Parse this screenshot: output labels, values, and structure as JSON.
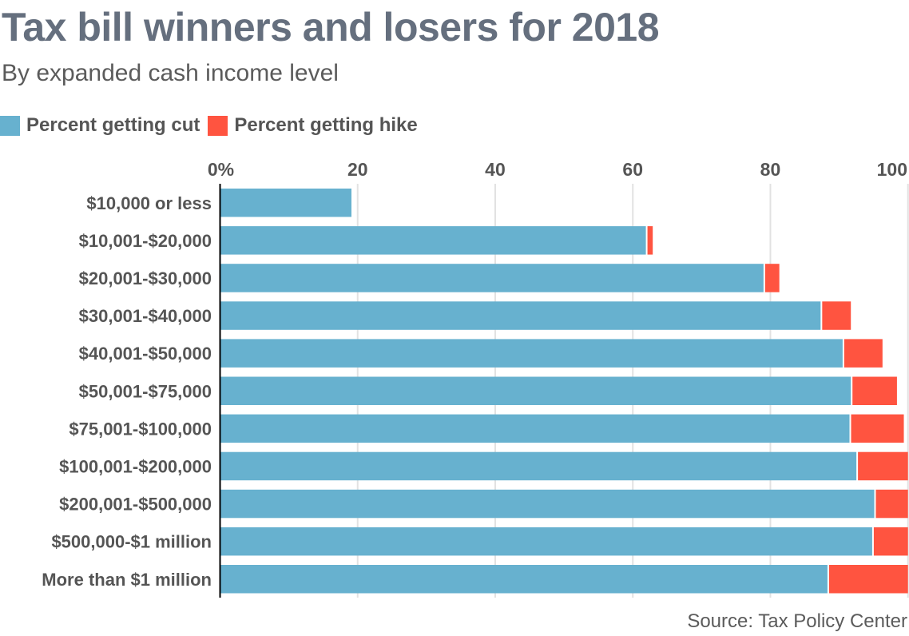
{
  "chart_data": {
    "type": "bar",
    "orientation": "horizontal",
    "stacked": true,
    "title": "Tax bill winners and losers for 2018",
    "subtitle": "By expanded cash income level",
    "xlabel": "",
    "ylabel": "",
    "xlim": [
      0,
      100
    ],
    "x_ticks": [
      {
        "value": 0,
        "label": "0%"
      },
      {
        "value": 20,
        "label": "20"
      },
      {
        "value": 40,
        "label": "40"
      },
      {
        "value": 60,
        "label": "60"
      },
      {
        "value": 80,
        "label": "80"
      },
      {
        "value": 100,
        "label": "100"
      }
    ],
    "grid": true,
    "legend_position": "top-left",
    "categories": [
      "$10,000 or less",
      "$10,001-$20,000",
      "$20,001-$30,000",
      "$30,001-$40,000",
      "$40,001-$50,000",
      "$50,001-$75,000",
      "$75,001-$100,000",
      "$100,001-$200,000",
      "$200,001-$500,000",
      "$500,000-$1 million",
      "More than $1 million"
    ],
    "series": [
      {
        "name": "Percent getting cut",
        "color": "#67b1cf",
        "values": [
          19.1,
          61.9,
          79.0,
          87.3,
          90.5,
          91.7,
          91.5,
          92.5,
          95.1,
          94.8,
          88.3
        ]
      },
      {
        "name": "Percent getting hike",
        "color": "#ff5440",
        "values": [
          0.0,
          1.0,
          2.3,
          4.4,
          5.8,
          6.7,
          7.9,
          7.5,
          4.9,
          5.2,
          11.7
        ]
      }
    ],
    "source": "Source: Tax Policy Center"
  }
}
